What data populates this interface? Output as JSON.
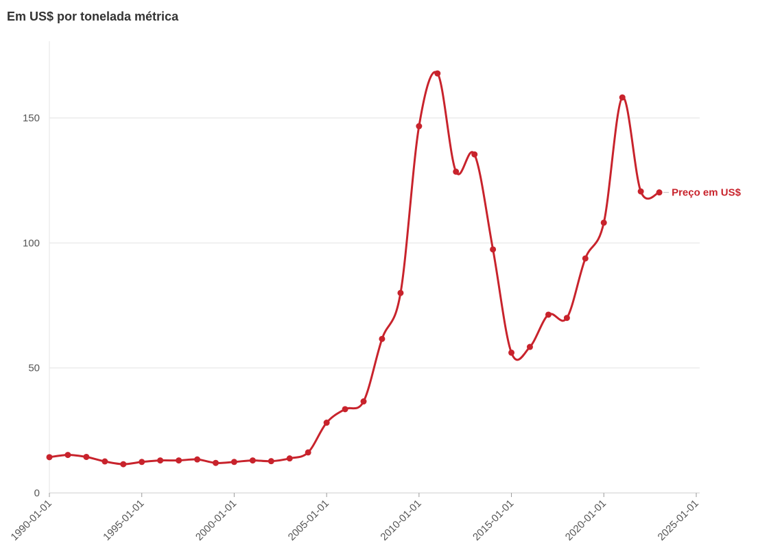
{
  "chart_data": {
    "type": "line",
    "title": "Em US$ por tonelada métrica",
    "xlabel": "",
    "ylabel": "",
    "x_ticks": [
      "1990-01-01",
      "1995-01-01",
      "2000-01-01",
      "2005-01-01",
      "2010-01-01",
      "2015-01-01",
      "2020-01-01",
      "2025-01-01"
    ],
    "y_ticks": [
      "0",
      "50",
      "100",
      "150"
    ],
    "xlim": [
      "1990-01-01",
      "2025-01-01"
    ],
    "ylim": [
      0,
      175
    ],
    "grid": true,
    "series": [
      {
        "name": "Preço em US$",
        "color": "#c8232c",
        "x": [
          "1990-01-01",
          "1991-01-01",
          "1992-01-01",
          "1993-01-01",
          "1994-01-01",
          "1995-01-01",
          "1996-01-01",
          "1997-01-01",
          "1998-01-01",
          "1999-01-01",
          "2000-01-01",
          "2001-01-01",
          "2002-01-01",
          "2003-01-01",
          "2004-01-01",
          "2005-01-01",
          "2006-01-01",
          "2007-01-01",
          "2008-01-01",
          "2009-01-01",
          "2010-01-01",
          "2011-01-01",
          "2012-01-01",
          "2013-01-01",
          "2014-01-01",
          "2015-01-01",
          "2016-01-01",
          "2017-01-01",
          "2018-01-01",
          "2019-01-01",
          "2020-01-01",
          "2021-01-01",
          "2022-01-01",
          "2023-01-01"
        ],
        "values": [
          14.3,
          15.2,
          14.4,
          12.6,
          11.5,
          12.4,
          13.0,
          13.0,
          13.4,
          12.0,
          12.4,
          13.0,
          12.7,
          13.8,
          16.2,
          28.1,
          33.5,
          36.6,
          61.6,
          80.0,
          146.7,
          167.8,
          128.5,
          135.4,
          97.4,
          56.1,
          58.4,
          71.3,
          70.0,
          93.8,
          108.1,
          158.2,
          120.6,
          120.2
        ]
      }
    ]
  }
}
